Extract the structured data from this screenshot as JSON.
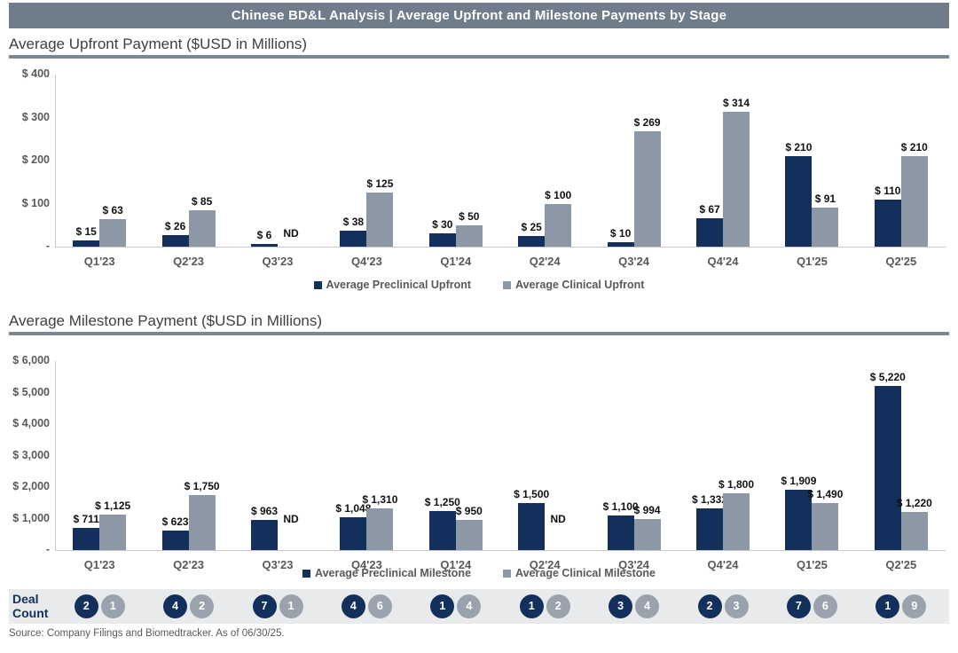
{
  "header": {
    "title": "Chinese BD&L Analysis | Average Upfront and Milestone Payments by Stage"
  },
  "colors": {
    "preclinical": "#13305C",
    "clinical": "#8C98A5",
    "header_bar": "#6F7D8B",
    "deal_circle_gray": "#9AA3AD",
    "deal_band": "#E9EAEB"
  },
  "chart_data": [
    {
      "type": "bar",
      "title": "Average Upfront Payment ($USD in Millions)",
      "categories": [
        "Q1'23",
        "Q2'23",
        "Q3'23",
        "Q4'23",
        "Q1'24",
        "Q2'24",
        "Q3'24",
        "Q4'24",
        "Q1'25",
        "Q2'25"
      ],
      "series": [
        {
          "name": "Average Preclinical Upfront",
          "color": "#13305C",
          "values": [
            15,
            26,
            6,
            38,
            30,
            25,
            10,
            67,
            210,
            110
          ],
          "labels": [
            "$ 15",
            "$ 26",
            "$ 6",
            "$ 38",
            "$ 30",
            "$ 25",
            "$ 10",
            "$ 67",
            "$ 210",
            "$ 110"
          ]
        },
        {
          "name": "Average Clinical Upfront",
          "color": "#8C98A5",
          "values": [
            63,
            85,
            null,
            125,
            50,
            100,
            269,
            314,
            91,
            210
          ],
          "labels": [
            "$ 63",
            "$ 85",
            "ND",
            "$ 125",
            "$ 50",
            "$ 100",
            "$ 269",
            "$ 314",
            "$ 91",
            "$ 210"
          ]
        }
      ],
      "ylim": [
        0,
        400
      ],
      "y_ticks": [
        {
          "value": 400,
          "label": "$ 400"
        },
        {
          "value": 300,
          "label": "$ 300"
        },
        {
          "value": 200,
          "label": "$ 200"
        },
        {
          "value": 100,
          "label": "$ 100"
        },
        {
          "value": 0,
          "label": "-"
        }
      ],
      "grid": false,
      "legend_position": "bottom"
    },
    {
      "type": "bar",
      "title": "Average Milestone Payment ($USD in Millions)",
      "categories": [
        "Q1'23",
        "Q2'23",
        "Q3'23",
        "Q4'23",
        "Q1'24",
        "Q2'24",
        "Q3'24",
        "Q4'24",
        "Q1'25",
        "Q2'25"
      ],
      "series": [
        {
          "name": "Average Preclinical Milestone",
          "color": "#13305C",
          "values": [
            711,
            623,
            963,
            1048,
            1250,
            1500,
            1100,
            1332,
            1909,
            5220
          ],
          "labels": [
            "$ 711",
            "$ 623",
            "$ 963",
            "$ 1,048",
            "$ 1,250",
            "$ 1,500",
            "$ 1,100",
            "$ 1,332",
            "$ 1,909",
            "$ 5,220"
          ]
        },
        {
          "name": "Average Clinical Milestone",
          "color": "#8C98A5",
          "values": [
            1125,
            1750,
            null,
            1310,
            950,
            null,
            994,
            1800,
            1490,
            1220
          ],
          "labels": [
            "$ 1,125",
            "$ 1,750",
            "ND",
            "$ 1,310",
            "$ 950",
            "ND",
            "$ 994",
            "$ 1,800",
            "$ 1,490",
            "$ 1,220"
          ]
        }
      ],
      "ylim": [
        0,
        6000
      ],
      "y_ticks": [
        {
          "value": 6000,
          "label": "$ 6,000"
        },
        {
          "value": 5000,
          "label": "$ 5,000"
        },
        {
          "value": 4000,
          "label": "$ 4,000"
        },
        {
          "value": 3000,
          "label": "$ 3,000"
        },
        {
          "value": 2000,
          "label": "$ 2,000"
        },
        {
          "value": 1000,
          "label": "$ 1,000"
        },
        {
          "value": 0,
          "label": "-"
        }
      ],
      "grid": false,
      "legend_position": "bottom"
    }
  ],
  "deal_count": {
    "label": "Deal Count",
    "pairs": [
      [
        2,
        1
      ],
      [
        4,
        2
      ],
      [
        7,
        1
      ],
      [
        4,
        6
      ],
      [
        1,
        4
      ],
      [
        1,
        2
      ],
      [
        3,
        4
      ],
      [
        2,
        3
      ],
      [
        7,
        6
      ],
      [
        1,
        9
      ]
    ]
  },
  "source": "Source: Company Filings and Biomedtracker. As of 06/30/25."
}
